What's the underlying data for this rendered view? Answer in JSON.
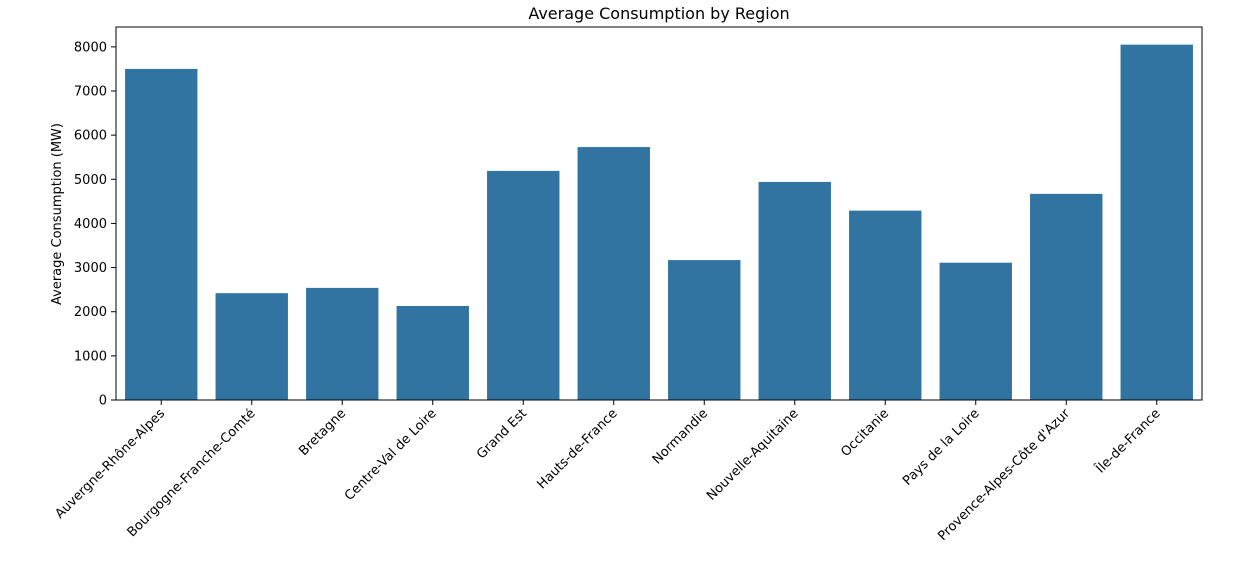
{
  "chart_data": {
    "type": "bar",
    "title": "Average Consumption by Region",
    "xlabel": "",
    "ylabel": "Average Consumption (MW)",
    "ylim": [
      0,
      8450
    ],
    "yticks": [
      0,
      1000,
      2000,
      3000,
      4000,
      5000,
      6000,
      7000,
      8000
    ],
    "categories": [
      "Auvergne-Rhône-Alpes",
      "Bourgogne-Franche-Comté",
      "Bretagne",
      "Centre-Val de Loire",
      "Grand Est",
      "Hauts-de-France",
      "Normandie",
      "Nouvelle-Aquitaine",
      "Occitanie",
      "Pays de la Loire",
      "Provence-Alpes-Côte d'Azur",
      "Île-de-France"
    ],
    "values": [
      7500,
      2420,
      2540,
      2130,
      5190,
      5730,
      3170,
      4940,
      4290,
      3110,
      4670,
      8050
    ],
    "bar_color": "#3274a1",
    "grid": false
  }
}
